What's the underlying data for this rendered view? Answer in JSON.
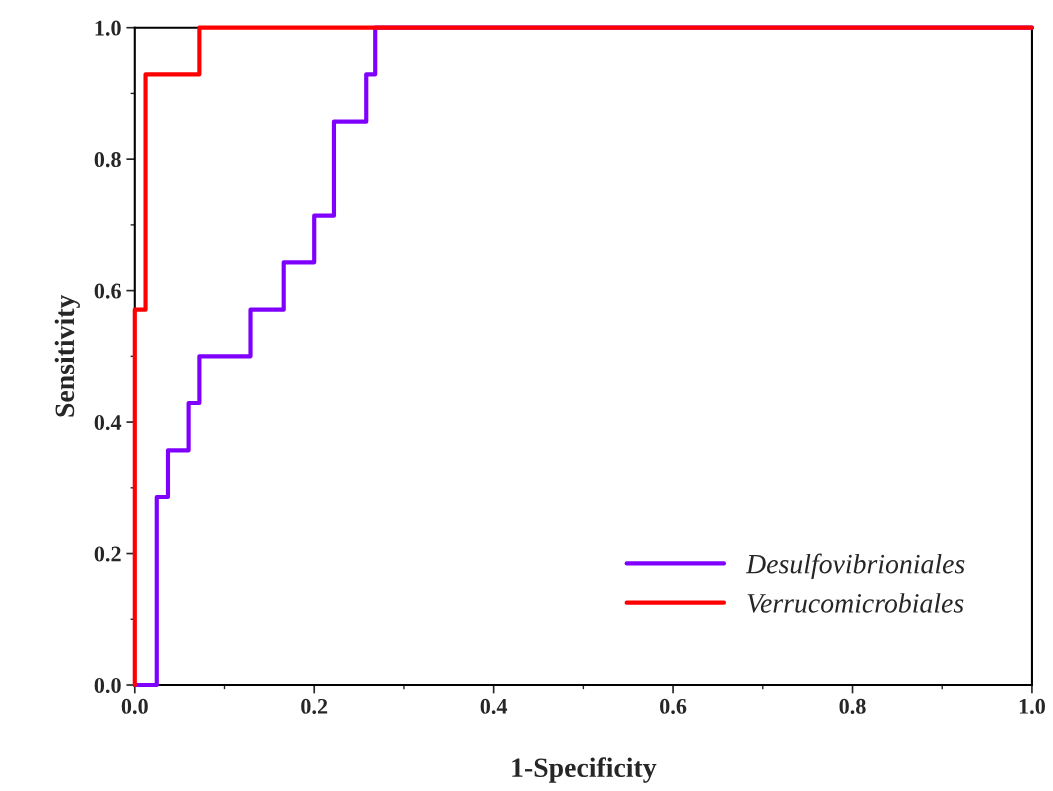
{
  "chart_data": {
    "type": "step",
    "xlabel": "1-Specificity",
    "ylabel": "Sensitivity",
    "series": [
      {
        "name": "Desulfovibrioniales",
        "color": "#8000ff",
        "x": [
          0,
          0.0245,
          0.037,
          0.06,
          0.072,
          0.129,
          0.166,
          0.2,
          0.222,
          0.258,
          0.268,
          1.0
        ],
        "values": [
          0,
          0.286,
          0.357,
          0.429,
          0.5,
          0.571,
          0.643,
          0.714,
          0.857,
          0.929,
          1.0,
          1.0
        ]
      },
      {
        "name": "Verrucomicrobiales",
        "color": "#ff0000",
        "x": [
          0,
          0,
          0.012,
          0.072,
          1.0
        ],
        "values": [
          0,
          0.571,
          0.929,
          1.0,
          1.0
        ]
      }
    ],
    "xlim": [
      0,
      1
    ],
    "ylim": [
      0,
      1
    ],
    "xticks": [
      {
        "value": 0,
        "label": "0.0"
      },
      0.2,
      0.4,
      0.6,
      0.8,
      {
        "value": 1,
        "label": "1.0"
      }
    ],
    "yticks": [
      {
        "value": 0,
        "label": "0.0"
      },
      0.2,
      0.4,
      0.6,
      0.8,
      {
        "value": 1,
        "label": "1.0"
      }
    ],
    "legend": "bottom right",
    "grid": false
  }
}
